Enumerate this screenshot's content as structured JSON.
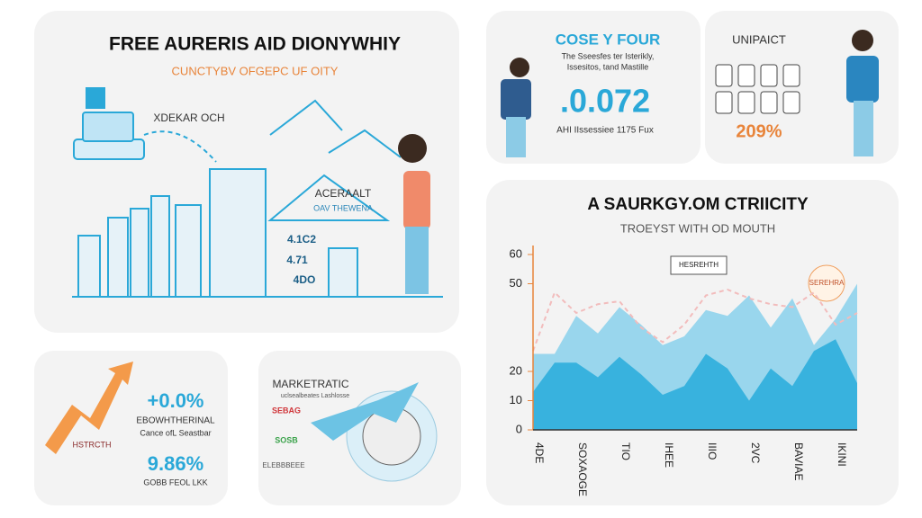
{
  "panels": {
    "hero": {
      "title": "FREE AURERIS AID DIONYWHIY",
      "subtitle": "CUNCTYBV OFGEPC UF OITY",
      "tag": "ХDEKAR OCH",
      "card_title": "ACERAALT",
      "card_sub": "OAV THEWENA",
      "labels": [
        "4.1C2",
        "4.71",
        "4DO"
      ]
    },
    "stat": {
      "title": "COSE Y FOUR",
      "lines": [
        "The Sseesfes ter Isterikly,",
        "Issesitos, tand Mastille"
      ],
      "big": ".0.072",
      "note": "AHI IIssessiee 1175 Fux"
    },
    "impact": {
      "title": "UNIPAICT",
      "big": "209%"
    },
    "growth": {
      "big1": "+0.0%",
      "line1": "EBOWHTHERINAL",
      "line2": "Cance ofL Seastbar",
      "big2": "9.86%",
      "line3": "GOBB FEOL LKK",
      "badge": "HSTRCTH"
    },
    "market": {
      "title": "MARKETRATIC",
      "line": "uclsealbeates Lashlosse",
      "tags": [
        "SEBAG",
        "SOSB",
        "ELEBBBEEE"
      ]
    }
  },
  "chart_data": {
    "type": "area",
    "title": "A SAURKGY.OM CTRIICITY",
    "subtitle": "TROEYST WITH OD MOUTH",
    "annotation": "HESREHTH",
    "badge": "SEREHRA",
    "categories": [
      "4DE",
      null,
      "SOXAOGE",
      null,
      "TIO",
      null,
      "IHEE",
      null,
      "IIIO",
      null,
      "2VC",
      null,
      "BAVIAE",
      null,
      "IKINI",
      null
    ],
    "series": [
      {
        "color": "#8fd3ec",
        "values": [
          26,
          26,
          39,
          33,
          42,
          36,
          29,
          32,
          41,
          39,
          46,
          35,
          45,
          29,
          38,
          50
        ]
      },
      {
        "color": "#2eaedc",
        "values": [
          13,
          23,
          23,
          18,
          25,
          19,
          12,
          15,
          26,
          21,
          10,
          21,
          15,
          27,
          31,
          16
        ]
      },
      {
        "color": "#f2bcbc",
        "values": [
          27,
          47,
          40,
          43,
          44,
          35,
          30,
          36,
          46,
          48,
          45,
          43,
          42,
          47,
          36,
          40
        ],
        "dashed": true
      }
    ],
    "ylim": [
      0,
      60
    ],
    "yticks": [
      0,
      10,
      20,
      50,
      60
    ]
  }
}
